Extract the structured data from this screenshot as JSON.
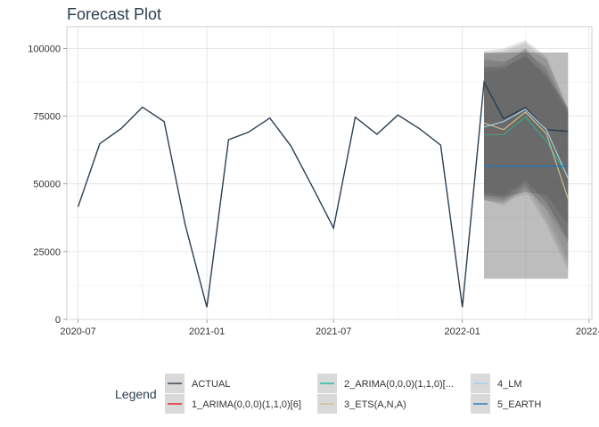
{
  "chart_data": {
    "type": "line",
    "title": "Forecast Plot",
    "xlabel": "",
    "ylabel": "",
    "grid": true,
    "legend_position": "bottom",
    "legend_title": "Legend",
    "xlim": [
      "2020-06-15",
      "2022-07-05"
    ],
    "ylim": [
      0,
      108000
    ],
    "x_ticks": [
      "2020-07-01",
      "2021-01-01",
      "2021-07-01",
      "2022-01-01",
      "2022-07-01"
    ],
    "x_tick_labels": [
      "2020-07",
      "2021-01",
      "2021-07",
      "2022-01",
      "2022-07"
    ],
    "y_ticks": [
      0,
      25000,
      50000,
      75000,
      100000
    ],
    "y_tick_labels": [
      "0",
      "25000",
      "50000",
      "75000",
      "100000"
    ],
    "actual": {
      "name": "ACTUAL",
      "color": "#2c3e50",
      "x": [
        "2020-07-01",
        "2020-08-01",
        "2020-09-01",
        "2020-10-01",
        "2020-11-01",
        "2020-12-01",
        "2021-01-01",
        "2021-02-01",
        "2021-03-01",
        "2021-04-01",
        "2021-05-01",
        "2021-06-01",
        "2021-07-01",
        "2021-08-01",
        "2021-09-01",
        "2021-10-01",
        "2021-11-01",
        "2021-12-01",
        "2022-01-01",
        "2022-02-01",
        "2022-03-01",
        "2022-04-01",
        "2022-05-01",
        "2022-06-01"
      ],
      "y": [
        41500,
        64800,
        70500,
        78300,
        73000,
        35000,
        4500,
        66300,
        69000,
        74300,
        64000,
        48800,
        33700,
        74600,
        68300,
        75400,
        70300,
        64300,
        4500,
        87500,
        74000,
        78200,
        70000,
        69400
      ]
    },
    "forecast_x": [
      "2022-02-01",
      "2022-03-01",
      "2022-04-01",
      "2022-05-01",
      "2022-06-01"
    ],
    "series": [
      {
        "name": "1_ARIMA(0,0,0)(1,1,0)[6]",
        "color": "#e31a1c",
        "values": [
          68500,
          68500,
          75000,
          66000,
          53000
        ],
        "lo80": [
          44000,
          43000,
          49000,
          41000,
          28000
        ],
        "hi80": [
          93000,
          94000,
          100000,
          91000,
          77000
        ],
        "lo95": [
          44000,
          42000,
          48000,
          35000,
          18000
        ],
        "hi95": [
          99000,
          100000,
          103000,
          97000,
          78000
        ]
      },
      {
        "name": "2_ARIMA(0,0,0)(1,1,0)[...",
        "color": "#18bc9c",
        "values": [
          68300,
          68300,
          74800,
          65800,
          52800
        ],
        "lo80": [
          46000,
          45000,
          51000,
          43000,
          30000
        ],
        "hi80": [
          91000,
          92000,
          98000,
          89000,
          76000
        ],
        "lo95": [
          45000,
          44000,
          50000,
          37000,
          20000
        ],
        "hi95": [
          98000,
          99000,
          102000,
          96000,
          77000
        ]
      },
      {
        "name": "3_ETS(A,N,A)",
        "color": "#ccbe93",
        "values": [
          72500,
          70000,
          76500,
          68500,
          44500
        ],
        "lo80": [
          47000,
          46000,
          51000,
          44000,
          29000
        ],
        "hi80": [
          96000,
          95000,
          99000,
          93000,
          76000
        ],
        "lo95": [
          45000,
          44000,
          50000,
          40000,
          22000
        ],
        "hi95": [
          98000,
          98000,
          100000,
          96000,
          77500
        ]
      },
      {
        "name": "4_LM",
        "color": "#a6cee3",
        "values": [
          71000,
          73000,
          77500,
          70000,
          52000
        ],
        "lo80": [
          15000,
          15000,
          15000,
          15000,
          15000
        ],
        "hi80": [
          98500,
          98500,
          98500,
          98500,
          98500
        ],
        "lo95": [
          15000,
          15000,
          15000,
          15000,
          15000
        ],
        "hi95": [
          98500,
          98500,
          98500,
          98500,
          98500
        ]
      },
      {
        "name": "5_EARTH",
        "color": "#1f78b4",
        "values": [
          56500,
          56500,
          56500,
          56500,
          56500
        ],
        "lo80": [
          46000,
          45000,
          47000,
          46000,
          35000
        ],
        "hi80": [
          93000,
          93000,
          97000,
          90000,
          78000
        ],
        "lo95": [
          45000,
          44000,
          46000,
          45000,
          30000
        ],
        "hi95": [
          95000,
          95000,
          98000,
          92000,
          78000
        ]
      }
    ]
  }
}
